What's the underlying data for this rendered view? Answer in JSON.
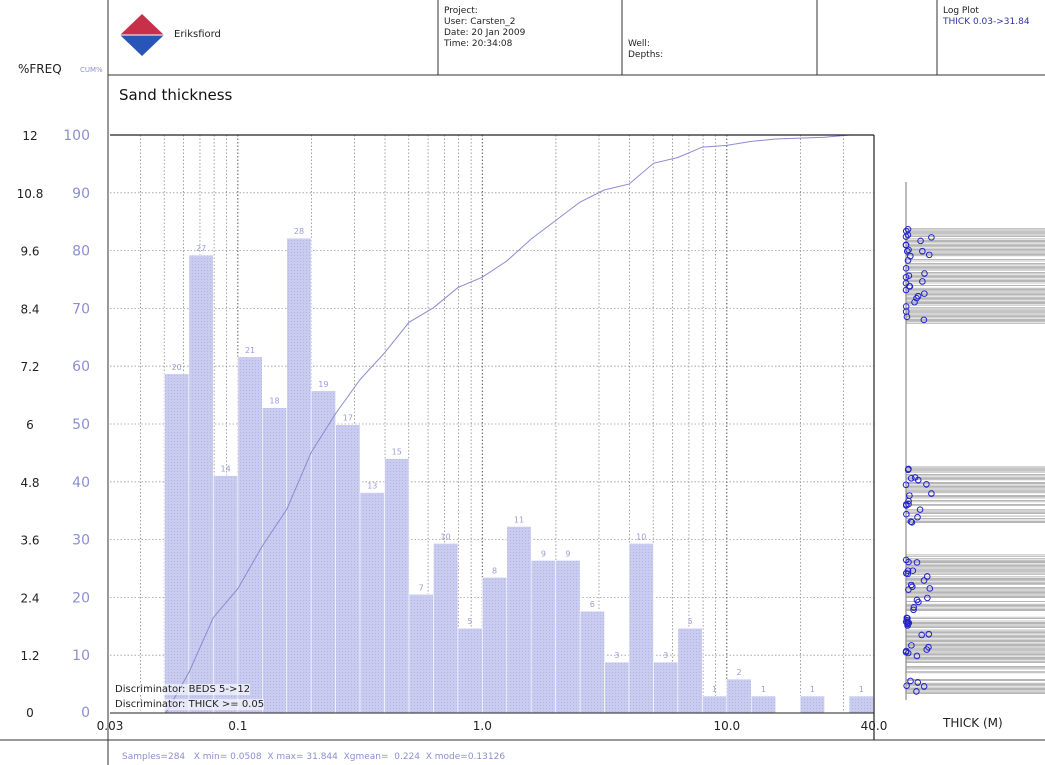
{
  "header": {
    "company": "Eriksfiord",
    "project_lines": [
      "Project:",
      "User: Carsten_2",
      "Date: 20 Jan 2009",
      "Time: 20:34:08"
    ],
    "well_lines": [
      "Well:",
      "Depths:"
    ],
    "log_plot_title": "Log Plot",
    "log_plot_range": "THICK 0.03->31.84",
    "freq_label": "%FREQ",
    "cum_label": "CUM%",
    "logo_colors": {
      "top": "#c8304a",
      "bottom": "#2a55b8"
    }
  },
  "chart_data": {
    "type": "bar",
    "title": "Sand thickness",
    "x_scale": "log",
    "xlim": [
      0.03,
      40.0
    ],
    "x_ticks": [
      "0.03",
      "0.1",
      "1.0",
      "10.0",
      "40.0"
    ],
    "xlabel": "THICK (M)",
    "y_freq_ticks": [
      "0",
      "1.2",
      "2.4",
      "3.6",
      "4.8",
      "6",
      "7.2",
      "8.4",
      "9.6",
      "10.8",
      "12"
    ],
    "y_cum_ticks": [
      "0",
      "10",
      "20",
      "30",
      "40",
      "50",
      "60",
      "70",
      "80",
      "90",
      "100"
    ],
    "y_freq_range": [
      0,
      12
    ],
    "y_cum_range": [
      0,
      100
    ],
    "bar_color": "#c9cbef",
    "curve_color": "#8b8bd0",
    "bins_per_decade": 10,
    "bars": [
      {
        "x0": 0.0501,
        "x1": 0.0631,
        "count": 20
      },
      {
        "x0": 0.0631,
        "x1": 0.0794,
        "count": 27
      },
      {
        "x0": 0.0794,
        "x1": 0.1,
        "count": 14
      },
      {
        "x0": 0.1,
        "x1": 0.1259,
        "count": 21
      },
      {
        "x0": 0.1259,
        "x1": 0.1585,
        "count": 18
      },
      {
        "x0": 0.1585,
        "x1": 0.1995,
        "count": 28
      },
      {
        "x0": 0.1995,
        "x1": 0.2512,
        "count": 19
      },
      {
        "x0": 0.2512,
        "x1": 0.3162,
        "count": 17
      },
      {
        "x0": 0.3162,
        "x1": 0.3981,
        "count": 13
      },
      {
        "x0": 0.3981,
        "x1": 0.5012,
        "count": 15
      },
      {
        "x0": 0.5012,
        "x1": 0.631,
        "count": 7
      },
      {
        "x0": 0.631,
        "x1": 0.7943,
        "count": 10
      },
      {
        "x0": 0.7943,
        "x1": 1.0,
        "count": 5
      },
      {
        "x0": 1.0,
        "x1": 1.2589,
        "count": 8
      },
      {
        "x0": 1.2589,
        "x1": 1.5849,
        "count": 11
      },
      {
        "x0": 1.5849,
        "x1": 1.9953,
        "count": 9
      },
      {
        "x0": 1.9953,
        "x1": 2.5119,
        "count": 9
      },
      {
        "x0": 2.5119,
        "x1": 3.1623,
        "count": 6
      },
      {
        "x0": 3.1623,
        "x1": 3.9811,
        "count": 3
      },
      {
        "x0": 3.9811,
        "x1": 5.0119,
        "count": 10
      },
      {
        "x0": 5.0119,
        "x1": 6.3096,
        "count": 3
      },
      {
        "x0": 6.3096,
        "x1": 7.9433,
        "count": 5
      },
      {
        "x0": 7.9433,
        "x1": 10.0,
        "count": 1
      },
      {
        "x0": 10.0,
        "x1": 12.5893,
        "count": 2
      },
      {
        "x0": 12.5893,
        "x1": 15.8489,
        "count": 1
      },
      {
        "x0": 19.9526,
        "x1": 25.1189,
        "count": 1
      },
      {
        "x0": 31.6228,
        "x1": 39.8107,
        "count": 1
      }
    ],
    "cumulative": [
      {
        "x": 0.0508,
        "y": 0
      },
      {
        "x": 0.0631,
        "y": 7
      },
      {
        "x": 0.0794,
        "y": 16.5
      },
      {
        "x": 0.1,
        "y": 21.5
      },
      {
        "x": 0.1259,
        "y": 28.9
      },
      {
        "x": 0.1585,
        "y": 35.2
      },
      {
        "x": 0.1995,
        "y": 45.1
      },
      {
        "x": 0.2512,
        "y": 51.8
      },
      {
        "x": 0.3162,
        "y": 57.7
      },
      {
        "x": 0.3981,
        "y": 62.3
      },
      {
        "x": 0.5012,
        "y": 67.6
      },
      {
        "x": 0.631,
        "y": 70.1
      },
      {
        "x": 0.7943,
        "y": 73.6
      },
      {
        "x": 1.0,
        "y": 75.4
      },
      {
        "x": 1.2589,
        "y": 78.2
      },
      {
        "x": 1.5849,
        "y": 82.0
      },
      {
        "x": 1.9953,
        "y": 85.2
      },
      {
        "x": 2.5119,
        "y": 88.4
      },
      {
        "x": 3.1623,
        "y": 90.5
      },
      {
        "x": 3.9811,
        "y": 91.5
      },
      {
        "x": 5.0119,
        "y": 95.1
      },
      {
        "x": 6.3096,
        "y": 96.1
      },
      {
        "x": 7.9433,
        "y": 97.9
      },
      {
        "x": 10.0,
        "y": 98.2
      },
      {
        "x": 12.5893,
        "y": 98.9
      },
      {
        "x": 15.8489,
        "y": 99.3
      },
      {
        "x": 25.1189,
        "y": 99.6
      },
      {
        "x": 31.844,
        "y": 100
      }
    ],
    "discriminators": [
      "Discriminator: BEDS 5->12",
      "Discriminator: THICK >= 0.05"
    ],
    "stats": "Samples=284   X min= 0.0508  X max= 31.844  Xgmean=  0.224  X mode=0.13126",
    "log_track": {
      "circle_color": "#2222cc",
      "line_color": "#8a8a8a",
      "clusters": [
        {
          "top": 0.09,
          "bottom": 0.28,
          "density": 0.9
        },
        {
          "top": 0.55,
          "bottom": 0.66,
          "density": 0.85
        },
        {
          "top": 0.72,
          "bottom": 0.83,
          "density": 0.9
        },
        {
          "top": 0.84,
          "bottom": 0.95,
          "density": 0.85
        },
        {
          "top": 0.96,
          "bottom": 0.99,
          "density": 0.8
        }
      ]
    }
  }
}
